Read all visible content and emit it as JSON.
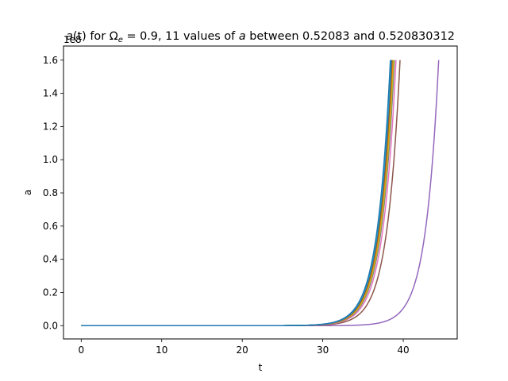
{
  "chart_data": {
    "type": "line",
    "title": {
      "prefix": "a",
      "paren": "(t)",
      "mid": " for ",
      "omega": "Ω",
      "sub": "e",
      "eq": " = 0.9, 11 values of ",
      "avar": "a",
      "rest": " between 0.52083 and 0.520830312"
    },
    "xlabel": "t",
    "ylabel": "a",
    "offset_text": "1e8",
    "xlim": [
      -2.2,
      46.7
    ],
    "ylim": [
      -0.08,
      1.685
    ],
    "xticks": [
      {
        "v": 0,
        "label": "0"
      },
      {
        "v": 10,
        "label": "10"
      },
      {
        "v": 20,
        "label": "20"
      },
      {
        "v": 30,
        "label": "30"
      },
      {
        "v": 40,
        "label": "40"
      }
    ],
    "yticks": [
      {
        "v": 0.0,
        "label": "0.0"
      },
      {
        "v": 0.2,
        "label": "0.2"
      },
      {
        "v": 0.4,
        "label": "0.4"
      },
      {
        "v": 0.6,
        "label": "0.6"
      },
      {
        "v": 0.8,
        "label": "0.8"
      },
      {
        "v": 1.0,
        "label": "1.0"
      },
      {
        "v": 1.2,
        "label": "1.2"
      },
      {
        "v": 1.4,
        "label": "1.4"
      },
      {
        "v": 1.6,
        "label": "1.6"
      }
    ],
    "curve_model": {
      "y_max": 1.6,
      "growth_rate": 0.62
    },
    "series": [
      {
        "color": "#9467bd",
        "t_end": 44.4
      },
      {
        "color": "#8c564b",
        "t_end": 39.6
      },
      {
        "color": "#e377c2",
        "t_end": 39.1
      },
      {
        "color": "#7f7f7f",
        "t_end": 38.9
      },
      {
        "color": "#bcbd22",
        "t_end": 38.8
      },
      {
        "color": "#ff7f0e",
        "t_end": 38.7
      },
      {
        "color": "#2ca02c",
        "t_end": 38.6
      },
      {
        "color": "#d62728",
        "t_end": 38.55
      },
      {
        "color": "#1f77b4",
        "t_end": 38.5
      },
      {
        "color": "#17becf",
        "t_end": 38.45
      },
      {
        "color": "#1f77b4",
        "t_end": 38.4
      }
    ]
  }
}
